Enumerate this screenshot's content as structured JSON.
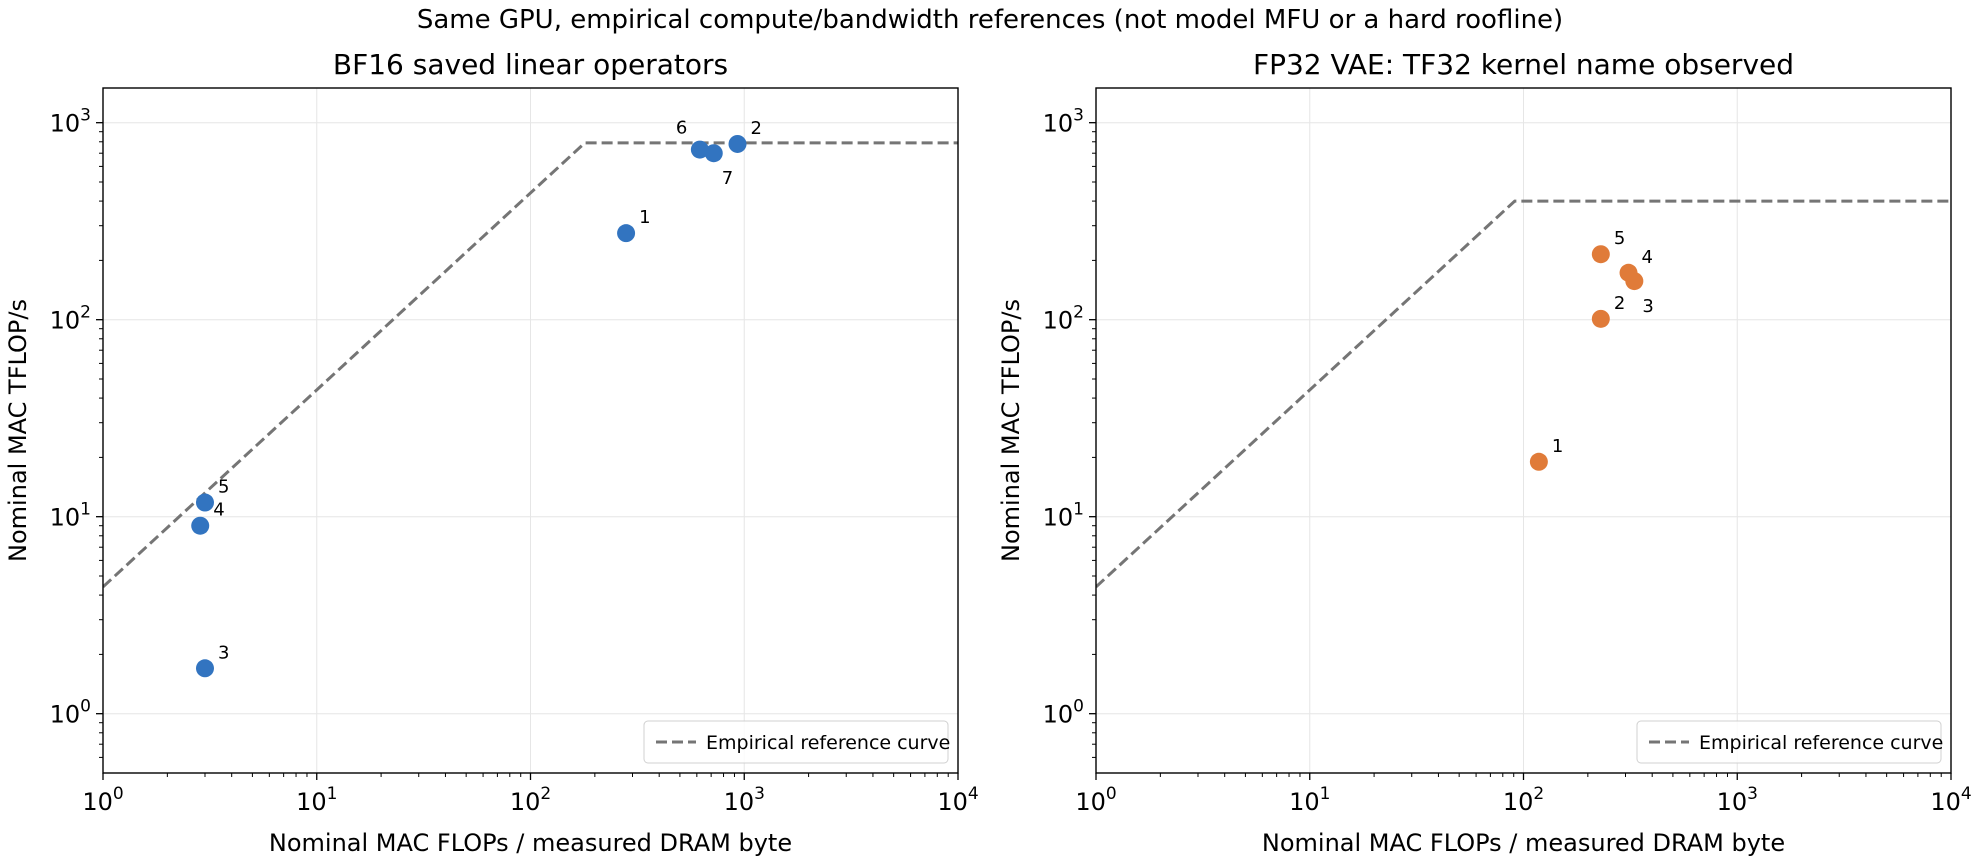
{
  "figure": {
    "suptitle": "Same GPU, empirical compute/bandwidth references (not model MFU or a hard roofline)"
  },
  "chart_data": [
    {
      "type": "scatter",
      "title": "BF16 saved linear operators",
      "xlabel": "Nominal MAC FLOPs / measured DRAM byte",
      "ylabel": "Nominal MAC TFLOP/s",
      "xscale": "log",
      "yscale": "log",
      "xlim": [
        1,
        10000
      ],
      "ylim": [
        0.5,
        1500
      ],
      "xticks": [
        {
          "value": 1,
          "base": "10",
          "exp": "0"
        },
        {
          "value": 10,
          "base": "10",
          "exp": "1"
        },
        {
          "value": 100,
          "base": "10",
          "exp": "2"
        },
        {
          "value": 1000,
          "base": "10",
          "exp": "3"
        },
        {
          "value": 10000,
          "base": "10",
          "exp": "4"
        }
      ],
      "yticks": [
        {
          "value": 1,
          "base": "10",
          "exp": "0"
        },
        {
          "value": 10,
          "base": "10",
          "exp": "1"
        },
        {
          "value": 100,
          "base": "10",
          "exp": "2"
        },
        {
          "value": 1000,
          "base": "10",
          "exp": "3"
        }
      ],
      "grid": true,
      "point_color": "#3274c0",
      "reference_curve": {
        "label": "Empirical reference curve",
        "color": "#757575",
        "slope_coefficient": 4.4,
        "plateau": 790
      },
      "legend": {
        "position": "lower-right"
      },
      "points": [
        {
          "label": "1",
          "x": 280,
          "y": 275,
          "label_pos": "upper-right"
        },
        {
          "label": "2",
          "x": 930,
          "y": 780,
          "label_pos": "upper-right"
        },
        {
          "label": "3",
          "x": 3.0,
          "y": 1.7,
          "label_pos": "upper-right"
        },
        {
          "label": "4",
          "x": 2.85,
          "y": 9.0,
          "label_pos": "upper-right"
        },
        {
          "label": "5",
          "x": 3.0,
          "y": 11.8,
          "label_pos": "upper-right"
        },
        {
          "label": "6",
          "x": 620,
          "y": 730,
          "label_pos": "upper-left"
        },
        {
          "label": "7",
          "x": 720,
          "y": 700,
          "label_pos": "lower-right"
        }
      ]
    },
    {
      "type": "scatter",
      "title": "FP32 VAE: TF32 kernel name observed",
      "xlabel": "Nominal MAC FLOPs / measured DRAM byte",
      "ylabel": "Nominal MAC TFLOP/s",
      "xscale": "log",
      "yscale": "log",
      "xlim": [
        1,
        10000
      ],
      "ylim": [
        0.5,
        1500
      ],
      "xticks": [
        {
          "value": 1,
          "base": "10",
          "exp": "0"
        },
        {
          "value": 10,
          "base": "10",
          "exp": "1"
        },
        {
          "value": 100,
          "base": "10",
          "exp": "2"
        },
        {
          "value": 1000,
          "base": "10",
          "exp": "3"
        },
        {
          "value": 10000,
          "base": "10",
          "exp": "4"
        }
      ],
      "yticks": [
        {
          "value": 1,
          "base": "10",
          "exp": "0"
        },
        {
          "value": 10,
          "base": "10",
          "exp": "1"
        },
        {
          "value": 100,
          "base": "10",
          "exp": "2"
        },
        {
          "value": 1000,
          "base": "10",
          "exp": "3"
        }
      ],
      "grid": true,
      "point_color": "#e07b39",
      "reference_curve": {
        "label": "Empirical reference curve",
        "color": "#757575",
        "slope_coefficient": 4.4,
        "plateau": 400
      },
      "legend": {
        "position": "lower-right"
      },
      "points": [
        {
          "label": "1",
          "x": 118,
          "y": 19,
          "label_pos": "upper-right"
        },
        {
          "label": "2",
          "x": 230,
          "y": 101,
          "label_pos": "upper-right"
        },
        {
          "label": "3",
          "x": 330,
          "y": 157,
          "label_pos": "lower-right"
        },
        {
          "label": "4",
          "x": 310,
          "y": 173,
          "label_pos": "upper-right"
        },
        {
          "label": "5",
          "x": 230,
          "y": 215,
          "label_pos": "upper-right"
        }
      ]
    }
  ]
}
